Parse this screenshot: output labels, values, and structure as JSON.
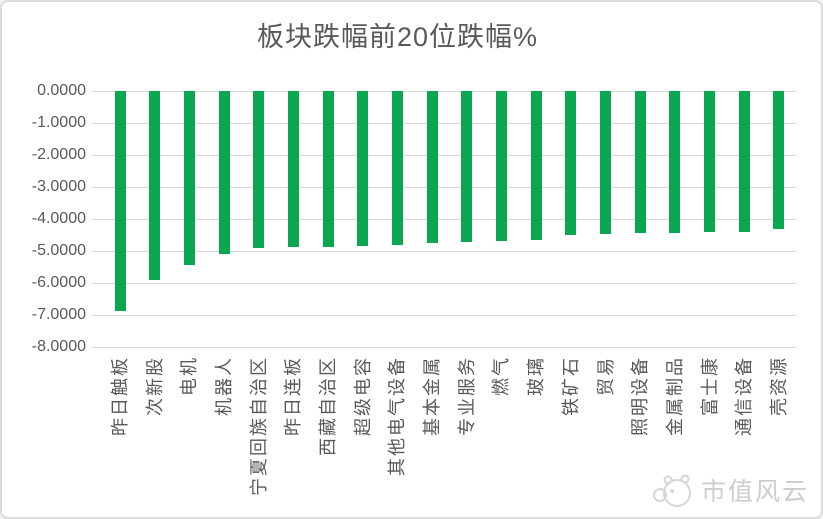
{
  "chart_data": {
    "type": "bar",
    "title": "板块跌幅前20位跌幅%",
    "categories": [
      "昨日触板",
      "次新股",
      "电机",
      "机器人",
      "宁夏回族自治区",
      "昨日连板",
      "西藏自治区",
      "超级电容",
      "其他电气设备",
      "基本金属",
      "专业服务",
      "燃气",
      "玻璃",
      "铁矿石",
      "贸易",
      "照明设备",
      "金属制品",
      "富士康",
      "通信设备",
      "壳资源"
    ],
    "values": [
      -6.88,
      -5.92,
      -5.45,
      -5.08,
      -4.9,
      -4.88,
      -4.86,
      -4.84,
      -4.8,
      -4.76,
      -4.72,
      -4.7,
      -4.65,
      -4.5,
      -4.47,
      -4.45,
      -4.44,
      -4.42,
      -4.4,
      -4.3
    ],
    "ylim": [
      -8,
      0
    ],
    "yticks": [
      "0.0000",
      "-1.0000",
      "-2.0000",
      "-3.0000",
      "-4.0000",
      "-5.0000",
      "-6.0000",
      "-7.0000",
      "-8.0000"
    ],
    "xlabel": "",
    "ylabel": "",
    "grid": true,
    "legend_position": "none",
    "bar_color": "#0aa750",
    "gridline_color": "#d9d9d9",
    "text_color": "#595959",
    "watermark_color": "#cdcdcd"
  },
  "watermark": {
    "text": "市值风云"
  }
}
